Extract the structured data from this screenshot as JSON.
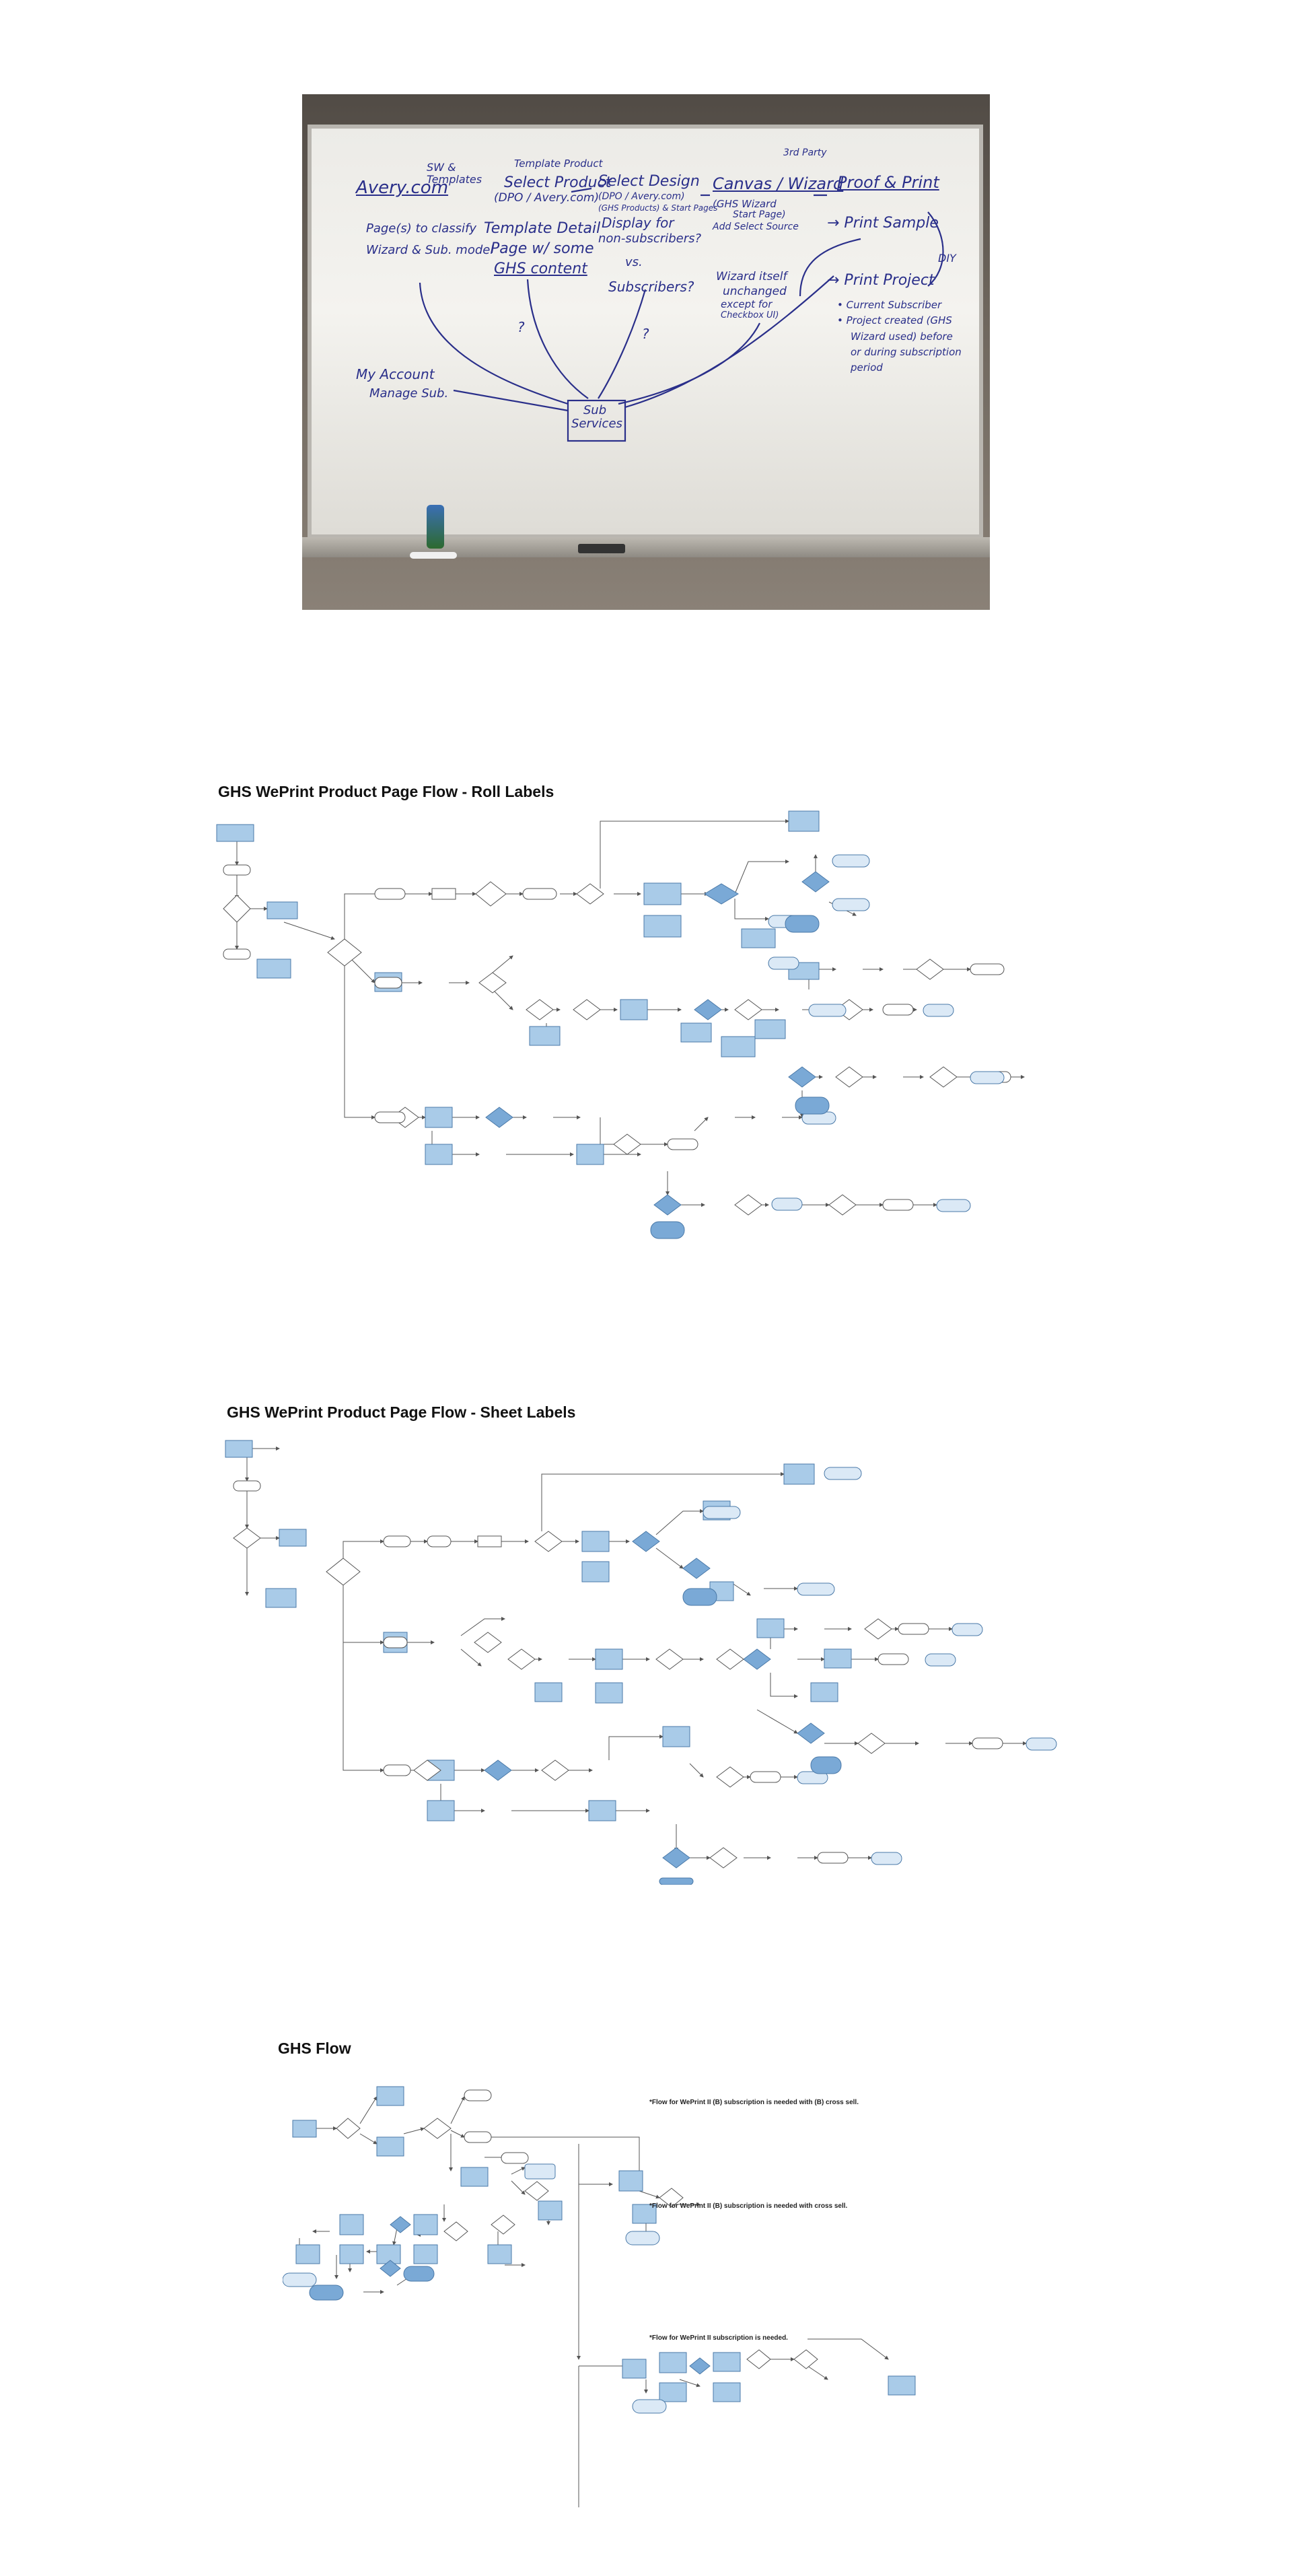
{
  "whiteboard": {
    "marker_color": "#2a2f8a",
    "texts": [
      {
        "id": "avery",
        "text": "Avery.com"
      },
      {
        "id": "sw-templates",
        "text": "SW & Templates"
      },
      {
        "id": "template-product",
        "text": "Template Product"
      },
      {
        "id": "select-product",
        "text": "Select Product"
      },
      {
        "id": "dpo-avery",
        "text": "(DPO / Avery.com)"
      },
      {
        "id": "select-design",
        "text": "Select Design"
      },
      {
        "id": "dpo-avery-2",
        "text": "(DPO / Avery.com)"
      },
      {
        "id": "ghs-products",
        "text": "(GHS Products) & Start Pages"
      },
      {
        "id": "canvas-wizard",
        "text": "Canvas / Wizard"
      },
      {
        "id": "third-party",
        "text": "3rd Party"
      },
      {
        "id": "proof-print",
        "text": "Proof & Print"
      },
      {
        "id": "pages-classify",
        "text": "Page(s) to classify"
      },
      {
        "id": "wizard-submodel",
        "text": "Wizard & Sub. model"
      },
      {
        "id": "template-detail",
        "text": "Template Detail"
      },
      {
        "id": "page-some",
        "text": "Page w/ some"
      },
      {
        "id": "ghs-content",
        "text": "GHS content"
      },
      {
        "id": "display-for",
        "text": "Display for"
      },
      {
        "id": "non-subscribers",
        "text": "non-subscribers?"
      },
      {
        "id": "vs",
        "text": "vs."
      },
      {
        "id": "subscribers",
        "text": "Subscribers?"
      },
      {
        "id": "ghs-wizard",
        "text": "(GHS Wizard"
      },
      {
        "id": "start-page",
        "text": "Start Page)"
      },
      {
        "id": "add-select",
        "text": "Add Select Source"
      },
      {
        "id": "print-sample",
        "text": "→ Print Sample"
      },
      {
        "id": "diy",
        "text": "DIY"
      },
      {
        "id": "print-project",
        "text": "→ Print Project"
      },
      {
        "id": "current-subscriber",
        "text": "• Current Subscriber"
      },
      {
        "id": "project-created",
        "text": "• Project created (GHS"
      },
      {
        "id": "wizard-used",
        "text": "Wizard used) before"
      },
      {
        "id": "or-during",
        "text": "or during subscription"
      },
      {
        "id": "period",
        "text": "period"
      },
      {
        "id": "wizard-itself",
        "text": "Wizard itself"
      },
      {
        "id": "unchanged",
        "text": "unchanged"
      },
      {
        "id": "except-for",
        "text": "except for"
      },
      {
        "id": "checkbox-ui",
        "text": "Checkbox UI)"
      },
      {
        "id": "q1",
        "text": "?"
      },
      {
        "id": "q2",
        "text": "?"
      },
      {
        "id": "my-account",
        "text": "My Account"
      },
      {
        "id": "manage-sub",
        "text": "Manage Sub."
      },
      {
        "id": "sub-services",
        "text": "Sub Services"
      }
    ]
  },
  "sections": [
    {
      "id": "roll",
      "title": "GHS WePrint Product Page Flow - Roll Labels"
    },
    {
      "id": "sheet",
      "title": "GHS WePrint Product Page Flow - Sheet Labels"
    },
    {
      "id": "flow",
      "title": "GHS Flow"
    }
  ],
  "flow_notes": [
    "*Flow for WePrint II (B) subscription is needed with (B) cross sell.",
    "*Flow for WePrint II (B) subscription is needed with cross sell.",
    "*Flow for WePrint II subscription is needed."
  ],
  "colors": {
    "box_fill": "#a9cbe8",
    "box_dark": "#7aa9d6",
    "box_stroke": "#4a79a8",
    "line": "#555555"
  }
}
